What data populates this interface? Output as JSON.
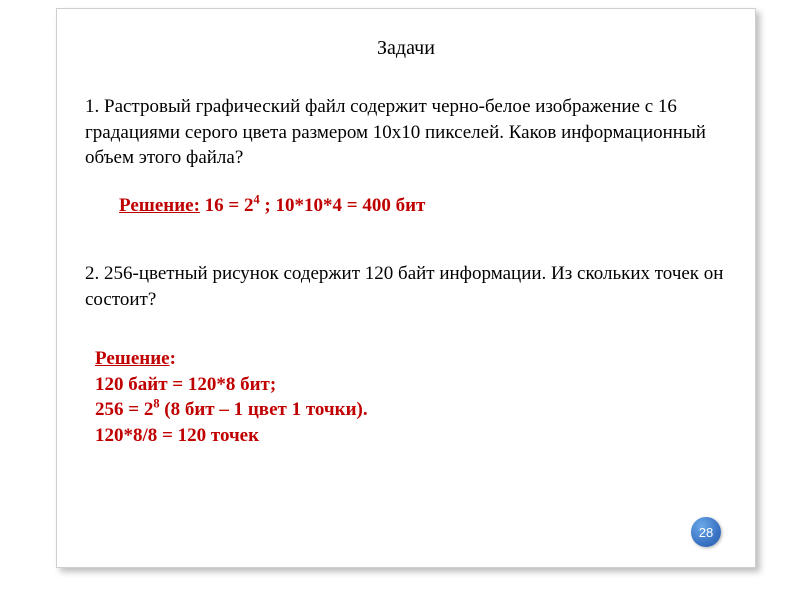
{
  "slide": {
    "title": "Задачи",
    "problem1": "1. Растровый графический файл содержит черно-белое изображение с 16 градациями серого цвета размером 10x10 пикселей. Каков информационный объем этого файла?",
    "solution1": {
      "label": "Решение:",
      "part_a": " 16 = 2",
      "exp_a": "4",
      "part_b": "  ;  10*10*4 = 400 бит"
    },
    "problem2": "2. 256-цветный рисунок содержит 120 байт информации. Из скольких точек он состоит?",
    "solution2": {
      "label": "Решение",
      "colon": ":",
      "line1": "120 байт = 120*8 бит;",
      "line2_a": "256 = 2",
      "line2_exp": "8",
      "line2_b": "  (8 бит – 1 цвет 1 точки).",
      "line3": "120*8/8 = 120 точек"
    },
    "page_number": "28"
  },
  "style": {
    "accent_color": "#c00000",
    "text_color": "#000000",
    "badge_bg": "#3a74c4",
    "badge_text": "#ffffff",
    "title_fontsize": 20,
    "body_fontsize": 19,
    "badge_diameter": 30,
    "slide_width": 700,
    "slide_height": 560,
    "font_family": "Georgia, Times New Roman, serif"
  }
}
